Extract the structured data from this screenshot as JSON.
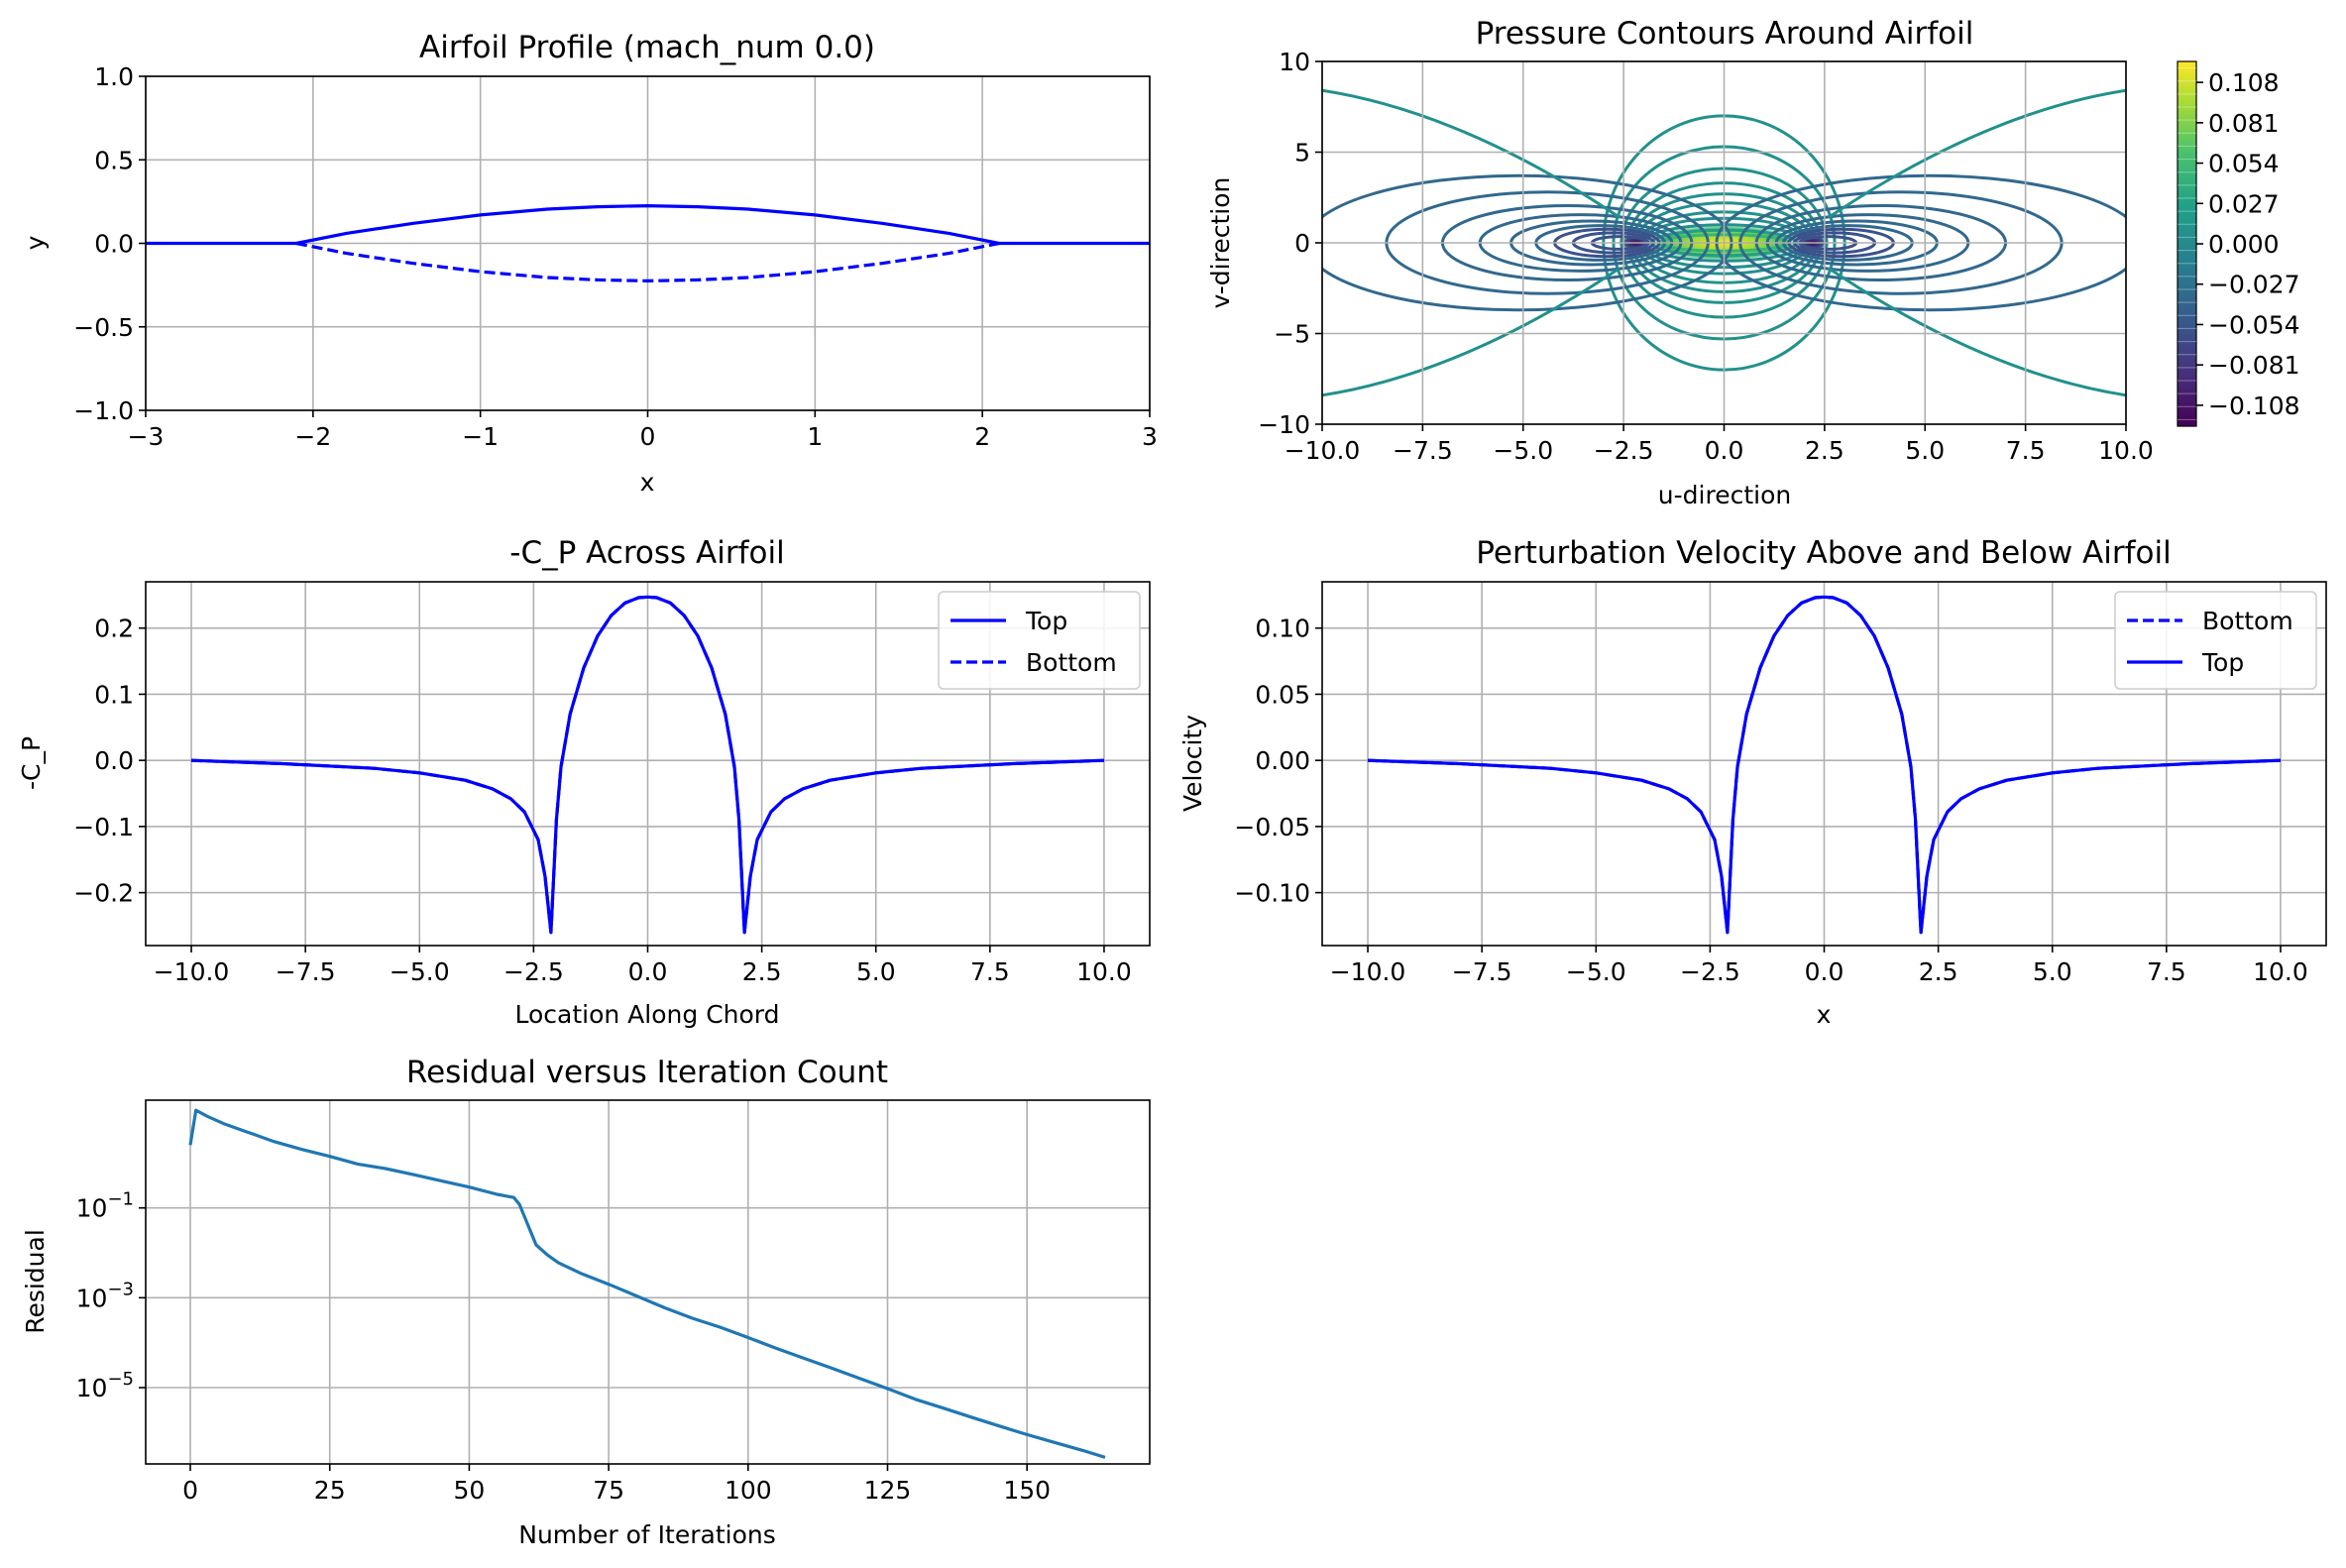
{
  "figure_title": "",
  "chart_data": [
    {
      "id": "profile",
      "type": "line",
      "title": "Airfoil Profile (mach_num 0.0)",
      "xlabel": "x",
      "ylabel": "y",
      "xlim": [
        -3,
        3
      ],
      "ylim": [
        -1,
        1
      ],
      "xticks": [
        -3,
        -2,
        -1,
        0,
        1,
        2,
        3
      ],
      "xtick_labels": [
        "−3",
        "−2",
        "−1",
        "0",
        "1",
        "2",
        "3"
      ],
      "yticks": [
        -1.0,
        -0.5,
        0.0,
        0.5,
        1.0
      ],
      "ytick_labels": [
        "−1.0",
        "−0.5",
        "0.0",
        "0.5",
        "1.0"
      ],
      "grid": true,
      "series": [
        {
          "style": "solid",
          "color": "#0000ff",
          "x": [
            -3,
            -2.1,
            -1.8,
            -1.4,
            -1.0,
            -0.6,
            -0.3,
            0,
            0.3,
            0.6,
            1.0,
            1.4,
            1.8,
            2.1,
            3
          ],
          "y": [
            0,
            0,
            0.06,
            0.12,
            0.17,
            0.205,
            0.219,
            0.225,
            0.219,
            0.205,
            0.17,
            0.12,
            0.06,
            0,
            0
          ]
        },
        {
          "style": "dashed",
          "color": "#0000ff",
          "x": [
            -2.1,
            -1.8,
            -1.4,
            -1.0,
            -0.6,
            -0.3,
            0,
            0.3,
            0.6,
            1.0,
            1.4,
            1.8,
            2.1
          ],
          "y": [
            0,
            -0.06,
            -0.12,
            -0.17,
            -0.205,
            -0.219,
            -0.225,
            -0.219,
            -0.205,
            -0.17,
            -0.12,
            -0.06,
            0
          ]
        }
      ]
    },
    {
      "id": "contour",
      "type": "contour",
      "title": "Pressure Contours Around Airfoil",
      "xlabel": "u-direction",
      "ylabel": "v-direction",
      "xlim": [
        -10,
        10
      ],
      "ylim": [
        -10,
        10
      ],
      "xticks": [
        -10,
        -7.5,
        -5,
        -2.5,
        0,
        2.5,
        5,
        7.5,
        10
      ],
      "xtick_labels": [
        "−10.0",
        "−7.5",
        "−5.0",
        "−2.5",
        "0.0",
        "2.5",
        "5.0",
        "7.5",
        "10.0"
      ],
      "yticks": [
        -10,
        -5,
        0,
        5,
        10
      ],
      "ytick_labels": [
        "−10",
        "−5",
        "0",
        "5",
        "10"
      ],
      "grid": true,
      "colormap": "viridis",
      "colorbar_range": [
        -0.122,
        0.122
      ],
      "colorbar_ticks": [
        0.108,
        0.081,
        0.054,
        0.027,
        0.0,
        -0.027,
        -0.054,
        -0.081,
        -0.108
      ],
      "colorbar_tick_labels": [
        "0.108",
        "0.081",
        "0.054",
        "0.027",
        "0.000",
        "−0.027",
        "−0.054",
        "−0.081",
        "−0.108"
      ]
    },
    {
      "id": "cp",
      "type": "line",
      "title": "-C_P Across Airfoil",
      "xlabel": "Location Along Chord",
      "ylabel": "-C_P",
      "xlim": [
        -11,
        11
      ],
      "ylim": [
        -0.28,
        0.27
      ],
      "xticks": [
        -10,
        -7.5,
        -5,
        -2.5,
        0,
        2.5,
        5,
        7.5,
        10
      ],
      "xtick_labels": [
        "−10.0",
        "−7.5",
        "−5.0",
        "−2.5",
        "0.0",
        "2.5",
        "5.0",
        "7.5",
        "10.0"
      ],
      "yticks": [
        -0.2,
        -0.1,
        0.0,
        0.1,
        0.2
      ],
      "ytick_labels": [
        "−0.2",
        "−0.1",
        "0.0",
        "0.1",
        "0.2"
      ],
      "grid": true,
      "legend_position": "top-right",
      "series": [
        {
          "name": "Top",
          "style": "solid",
          "color": "#0000ff",
          "x": [
            -10,
            -8,
            -6,
            -5,
            -4,
            -3.4,
            -3,
            -2.7,
            -2.4,
            -2.25,
            -2.12,
            -2.0,
            -1.9,
            -1.7,
            -1.4,
            -1.1,
            -0.8,
            -0.5,
            -0.2,
            0,
            0.2,
            0.5,
            0.8,
            1.1,
            1.4,
            1.7,
            1.9,
            2.0,
            2.12,
            2.25,
            2.4,
            2.7,
            3,
            3.4,
            4,
            5,
            6,
            8,
            10
          ],
          "y": [
            0.0,
            -0.005,
            -0.012,
            -0.019,
            -0.03,
            -0.043,
            -0.058,
            -0.078,
            -0.12,
            -0.175,
            -0.26,
            -0.09,
            -0.01,
            0.07,
            0.14,
            0.188,
            0.219,
            0.238,
            0.246,
            0.247,
            0.246,
            0.238,
            0.219,
            0.188,
            0.14,
            0.07,
            -0.01,
            -0.09,
            -0.26,
            -0.175,
            -0.12,
            -0.078,
            -0.058,
            -0.043,
            -0.03,
            -0.019,
            -0.012,
            -0.005,
            0.0
          ]
        },
        {
          "name": "Bottom",
          "style": "dashed",
          "color": "#0000ff",
          "x": [
            -10,
            -8,
            -6,
            -5,
            -4,
            -3.4,
            -3,
            -2.7,
            -2.4,
            -2.25,
            -2.12,
            -2.0,
            -1.9,
            -1.7,
            -1.4,
            -1.1,
            -0.8,
            -0.5,
            -0.2,
            0,
            0.2,
            0.5,
            0.8,
            1.1,
            1.4,
            1.7,
            1.9,
            2.0,
            2.12,
            2.25,
            2.4,
            2.7,
            3,
            3.4,
            4,
            5,
            6,
            8,
            10
          ],
          "y": [
            0.0,
            -0.005,
            -0.012,
            -0.019,
            -0.03,
            -0.043,
            -0.058,
            -0.078,
            -0.12,
            -0.175,
            -0.26,
            -0.09,
            -0.01,
            0.07,
            0.14,
            0.188,
            0.219,
            0.238,
            0.246,
            0.247,
            0.246,
            0.238,
            0.219,
            0.188,
            0.14,
            0.07,
            -0.01,
            -0.09,
            -0.26,
            -0.175,
            -0.12,
            -0.078,
            -0.058,
            -0.043,
            -0.03,
            -0.019,
            -0.012,
            -0.005,
            0.0
          ]
        }
      ]
    },
    {
      "id": "velocity",
      "type": "line",
      "title": "Perturbation Velocity Above and Below Airfoil",
      "xlabel": "x",
      "ylabel": "Velocity",
      "xlim": [
        -11,
        11
      ],
      "ylim": [
        -0.14,
        0.135
      ],
      "xticks": [
        -10,
        -7.5,
        -5,
        -2.5,
        0,
        2.5,
        5,
        7.5,
        10
      ],
      "xtick_labels": [
        "−10.0",
        "−7.5",
        "−5.0",
        "−2.5",
        "0.0",
        "2.5",
        "5.0",
        "7.5",
        "10.0"
      ],
      "yticks": [
        -0.1,
        -0.05,
        0.0,
        0.05,
        0.1
      ],
      "ytick_labels": [
        "−0.10",
        "−0.05",
        "0.00",
        "0.05",
        "0.10"
      ],
      "grid": true,
      "legend_position": "top-right",
      "series": [
        {
          "name": "Bottom",
          "style": "dashed",
          "color": "#0000ff",
          "x": [
            -10,
            -8,
            -6,
            -5,
            -4,
            -3.4,
            -3,
            -2.7,
            -2.4,
            -2.25,
            -2.12,
            -2.0,
            -1.9,
            -1.7,
            -1.4,
            -1.1,
            -0.8,
            -0.5,
            -0.2,
            0,
            0.2,
            0.5,
            0.8,
            1.1,
            1.4,
            1.7,
            1.9,
            2.0,
            2.12,
            2.25,
            2.4,
            2.7,
            3,
            3.4,
            4,
            5,
            6,
            8,
            10
          ],
          "y": [
            0.0,
            -0.0025,
            -0.006,
            -0.0095,
            -0.015,
            -0.0215,
            -0.029,
            -0.039,
            -0.06,
            -0.0875,
            -0.13,
            -0.045,
            -0.005,
            0.035,
            0.07,
            0.094,
            0.1095,
            0.119,
            0.123,
            0.1235,
            0.123,
            0.119,
            0.1095,
            0.094,
            0.07,
            0.035,
            -0.005,
            -0.045,
            -0.13,
            -0.0875,
            -0.06,
            -0.039,
            -0.029,
            -0.0215,
            -0.015,
            -0.0095,
            -0.006,
            -0.0025,
            0.0
          ]
        },
        {
          "name": "Top",
          "style": "solid",
          "color": "#0000ff",
          "x": [
            -10,
            -8,
            -6,
            -5,
            -4,
            -3.4,
            -3,
            -2.7,
            -2.4,
            -2.25,
            -2.12,
            -2.0,
            -1.9,
            -1.7,
            -1.4,
            -1.1,
            -0.8,
            -0.5,
            -0.2,
            0,
            0.2,
            0.5,
            0.8,
            1.1,
            1.4,
            1.7,
            1.9,
            2.0,
            2.12,
            2.25,
            2.4,
            2.7,
            3,
            3.4,
            4,
            5,
            6,
            8,
            10
          ],
          "y": [
            0.0,
            -0.0025,
            -0.006,
            -0.0095,
            -0.015,
            -0.0215,
            -0.029,
            -0.039,
            -0.06,
            -0.0875,
            -0.13,
            -0.045,
            -0.005,
            0.035,
            0.07,
            0.094,
            0.1095,
            0.119,
            0.123,
            0.1235,
            0.123,
            0.119,
            0.1095,
            0.094,
            0.07,
            0.035,
            -0.005,
            -0.045,
            -0.13,
            -0.0875,
            -0.06,
            -0.039,
            -0.029,
            -0.0215,
            -0.015,
            -0.0095,
            -0.006,
            -0.0025,
            0.0
          ]
        }
      ]
    },
    {
      "id": "residual",
      "type": "line",
      "title": "Residual versus Iteration Count",
      "xlabel": "Number of Iterations",
      "ylabel": "Residual",
      "yscale": "log",
      "xlim": [
        -8,
        172
      ],
      "ylim": [
        2e-07,
        25
      ],
      "xticks": [
        0,
        25,
        50,
        75,
        100,
        125,
        150
      ],
      "xtick_labels": [
        "0",
        "25",
        "50",
        "75",
        "100",
        "125",
        "150"
      ],
      "ytick_exponents": [
        -1,
        -3,
        -5
      ],
      "grid": true,
      "series": [
        {
          "color": "#1f77b4",
          "x": [
            0,
            1,
            3,
            6,
            10,
            15,
            20,
            25,
            30,
            35,
            40,
            45,
            50,
            55,
            58,
            59,
            60,
            61,
            62,
            64,
            66,
            70,
            75,
            80,
            85,
            90,
            95,
            100,
            105,
            110,
            115,
            120,
            125,
            130,
            135,
            140,
            145,
            150,
            155,
            160,
            164
          ],
          "y": [
            2.5,
            15,
            11,
            7.5,
            5,
            3,
            2,
            1.4,
            0.95,
            0.75,
            0.55,
            0.4,
            0.29,
            0.2,
            0.17,
            0.12,
            0.06,
            0.03,
            0.015,
            0.009,
            0.006,
            0.0035,
            0.002,
            0.0011,
            0.0006,
            0.00035,
            0.00022,
            0.00013,
            7.5e-05,
            4.5e-05,
            2.7e-05,
            1.6e-05,
            9.5e-06,
            5.5e-06,
            3.5e-06,
            2.2e-06,
            1.4e-06,
            9e-07,
            6e-07,
            4e-07,
            2.8e-07
          ]
        }
      ]
    }
  ]
}
